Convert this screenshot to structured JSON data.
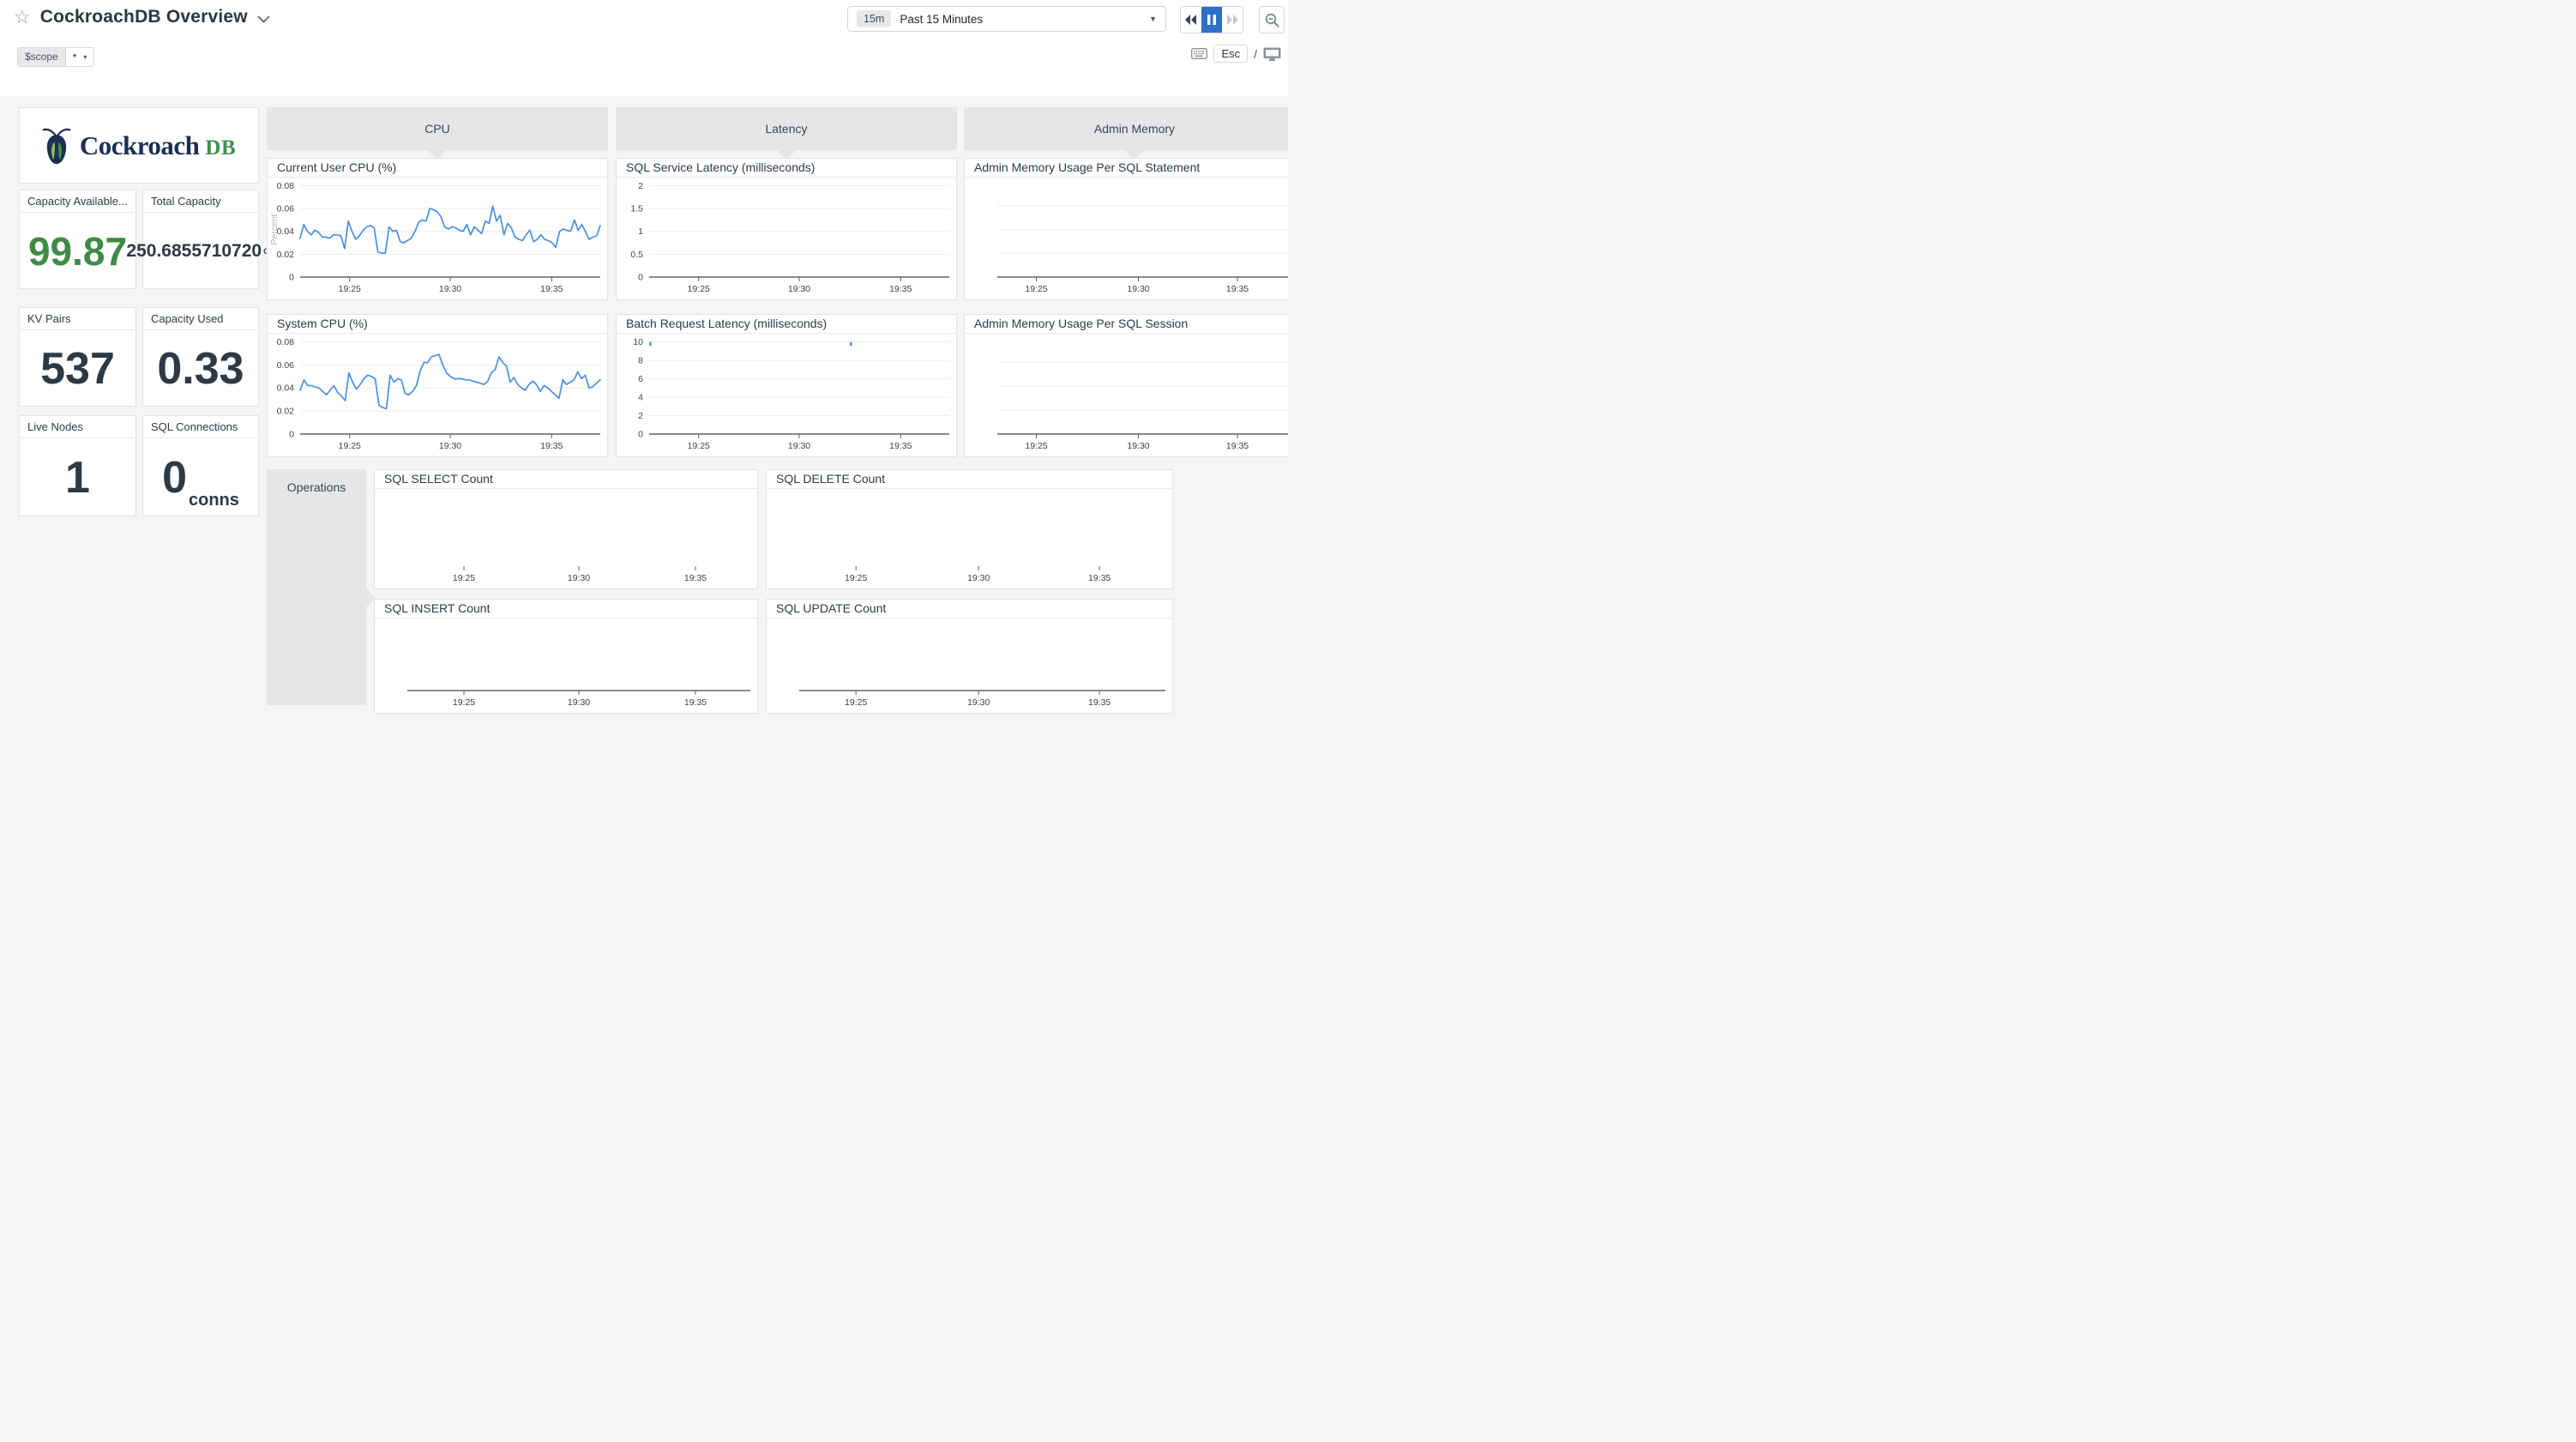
{
  "header": {
    "title": "CockroachDB Overview",
    "star_icon": "☆",
    "time_badge": "15m",
    "time_label": "Past 15 Minutes",
    "combo_caret": "▼",
    "accent_blue": "#2e6fc7"
  },
  "scope_bar": {
    "variable": "$scope",
    "value": "*",
    "caret": "▾",
    "esc_key": "Esc",
    "separator": "/"
  },
  "logo": {
    "brand": "Cockroach",
    "brand_suffix": "DB",
    "navy": "#1d3051",
    "green": "#3f8f4f"
  },
  "groups": {
    "cpu": "CPU",
    "latency": "Latency",
    "admin": "Admin Memory",
    "operations": "Operations"
  },
  "stats": [
    {
      "label": "Capacity Available...",
      "value": "99.87",
      "unit": "",
      "color": "#3f8a46"
    },
    {
      "label": "Total Capacity",
      "value": "250.6855710720",
      "unit": "GB",
      "color": "#2c3a45"
    },
    {
      "label": "KV Pairs",
      "value": "537",
      "unit": "",
      "color": "#2c3a45"
    },
    {
      "label": "Capacity Used",
      "value": "0.33",
      "unit": "",
      "color": "#2c3a45"
    },
    {
      "label": "Live Nodes",
      "value": "1",
      "unit": "",
      "color": "#2c3a45"
    },
    {
      "label": "SQL Connections",
      "value": "0",
      "unit": "conns",
      "color": "#2c3a45"
    }
  ],
  "chart_data": [
    {
      "type": "line",
      "title": "Current User CPU (%)",
      "ylabel": "Percent",
      "ymax": 0.0833,
      "axis": true,
      "line_color": "#4a90e2",
      "yticks": [
        {
          "v": 0,
          "label": "0"
        },
        {
          "v": 0.02,
          "label": "0.02"
        },
        {
          "v": 0.04,
          "label": "0.04"
        },
        {
          "v": 0.06,
          "label": "0.06"
        },
        {
          "v": 0.08,
          "label": "0.08"
        }
      ],
      "xticks": [
        {
          "f": 0.165,
          "label": "19:25"
        },
        {
          "f": 0.5,
          "label": "19:30"
        },
        {
          "f": 0.838,
          "label": "19:35"
        }
      ],
      "values": [
        0.034,
        0.046,
        0.04,
        0.037,
        0.041,
        0.039,
        0.035,
        0.035,
        0.034,
        0.037,
        0.037,
        0.036,
        0.025,
        0.049,
        0.04,
        0.033,
        0.036,
        0.041,
        0.044,
        0.045,
        0.043,
        0.022,
        0.021,
        0.021,
        0.044,
        0.04,
        0.041,
        0.031,
        0.03,
        0.032,
        0.034,
        0.04,
        0.048,
        0.05,
        0.049,
        0.06,
        0.059,
        0.057,
        0.053,
        0.044,
        0.042,
        0.044,
        0.043,
        0.041,
        0.04,
        0.046,
        0.037,
        0.044,
        0.041,
        0.038,
        0.049,
        0.047,
        0.062,
        0.049,
        0.054,
        0.037,
        0.047,
        0.043,
        0.035,
        0.033,
        0.032,
        0.037,
        0.041,
        0.031,
        0.033,
        0.037,
        0.033,
        0.032,
        0.03,
        0.026,
        0.04,
        0.042,
        0.041,
        0.04,
        0.05,
        0.041,
        0.046,
        0.04,
        0.033,
        0.035,
        0.036,
        0.045
      ]
    },
    {
      "type": "line",
      "title": "System CPU (%)",
      "ylabel": "",
      "ymax": 0.0833,
      "axis": true,
      "line_color": "#4a90e2",
      "yticks": [
        {
          "v": 0,
          "label": "0"
        },
        {
          "v": 0.02,
          "label": "0.02"
        },
        {
          "v": 0.04,
          "label": "0.04"
        },
        {
          "v": 0.06,
          "label": "0.06"
        },
        {
          "v": 0.08,
          "label": "0.08"
        }
      ],
      "xticks": [
        {
          "f": 0.165,
          "label": "19:25"
        },
        {
          "f": 0.5,
          "label": "19:30"
        },
        {
          "f": 0.838,
          "label": "19:35"
        }
      ],
      "values": [
        0.038,
        0.047,
        0.042,
        0.042,
        0.041,
        0.04,
        0.037,
        0.034,
        0.038,
        0.042,
        0.036,
        0.033,
        0.029,
        0.053,
        0.045,
        0.039,
        0.043,
        0.048,
        0.051,
        0.05,
        0.048,
        0.025,
        0.023,
        0.022,
        0.051,
        0.045,
        0.048,
        0.047,
        0.035,
        0.034,
        0.037,
        0.042,
        0.055,
        0.062,
        0.062,
        0.067,
        0.068,
        0.069,
        0.06,
        0.053,
        0.05,
        0.048,
        0.048,
        0.048,
        0.047,
        0.047,
        0.046,
        0.045,
        0.044,
        0.043,
        0.046,
        0.053,
        0.056,
        0.067,
        0.062,
        0.059,
        0.045,
        0.049,
        0.043,
        0.04,
        0.038,
        0.043,
        0.046,
        0.043,
        0.037,
        0.042,
        0.04,
        0.037,
        0.034,
        0.031,
        0.047,
        0.043,
        0.045,
        0.047,
        0.054,
        0.048,
        0.051,
        0.04,
        0.041,
        0.044,
        0.047
      ]
    },
    {
      "type": "line",
      "title": "SQL Service Latency (milliseconds)",
      "ylabel": "",
      "ymax": 2.083,
      "axis": true,
      "line_color": "#4a90e2",
      "yticks": [
        {
          "v": 0,
          "label": "0"
        },
        {
          "v": 0.5,
          "label": "0.5"
        },
        {
          "v": 1,
          "label": "1"
        },
        {
          "v": 1.5,
          "label": "1.5"
        },
        {
          "v": 2,
          "label": "2"
        }
      ],
      "xticks": [
        {
          "f": 0.165,
          "label": "19:25"
        },
        {
          "f": 0.5,
          "label": "19:30"
        },
        {
          "f": 0.838,
          "label": "19:35"
        }
      ],
      "values": []
    },
    {
      "type": "line",
      "title": "Batch Request Latency (milliseconds)",
      "ylabel": "",
      "ymax": 10.42,
      "axis": true,
      "line_color": "#4a90e2",
      "yticks": [
        {
          "v": 0,
          "label": "0"
        },
        {
          "v": 2,
          "label": "2"
        },
        {
          "v": 4,
          "label": "4"
        },
        {
          "v": 6,
          "label": "6"
        },
        {
          "v": 8,
          "label": "8"
        },
        {
          "v": 10,
          "label": "10"
        }
      ],
      "xticks": [
        {
          "f": 0.165,
          "label": "19:25"
        },
        {
          "f": 0.5,
          "label": "19:30"
        },
        {
          "f": 0.838,
          "label": "19:35"
        }
      ],
      "values": [],
      "spikes": [
        {
          "f": 0.004,
          "v1": 10.0,
          "v2": 9.55
        },
        {
          "f": 0.672,
          "v1": 10.0,
          "v2": 9.55
        }
      ]
    },
    {
      "type": "line",
      "title": "Admin Memory Usage Per SQL Statement",
      "ylabel": "",
      "ymax": 1,
      "axis": true,
      "line_color": "#4a90e2",
      "yticks": [],
      "gridfracs": [
        0.25,
        0.5,
        0.75
      ],
      "xticks": [
        {
          "f": 0.13,
          "label": "19:25"
        },
        {
          "f": 0.47,
          "label": "19:30"
        },
        {
          "f": 0.8,
          "label": "19:35"
        }
      ],
      "values": []
    },
    {
      "type": "line",
      "title": "Admin Memory Usage Per SQL Session",
      "ylabel": "",
      "ymax": 1,
      "axis": true,
      "line_color": "#4a90e2",
      "yticks": [],
      "gridfracs": [
        0.25,
        0.5,
        0.75
      ],
      "xticks": [
        {
          "f": 0.13,
          "label": "19:25"
        },
        {
          "f": 0.47,
          "label": "19:30"
        },
        {
          "f": 0.8,
          "label": "19:35"
        }
      ],
      "values": []
    },
    {
      "type": "line",
      "title": "SQL SELECT Count",
      "ylabel": "",
      "ymax": 1,
      "axis": false,
      "line_color": "#4a90e2",
      "yticks": [],
      "xticks": [
        {
          "f": 0.165,
          "label": "19:25"
        },
        {
          "f": 0.5,
          "label": "19:30"
        },
        {
          "f": 0.84,
          "label": "19:35"
        }
      ],
      "values": []
    },
    {
      "type": "line",
      "title": "SQL DELETE Count",
      "ylabel": "",
      "ymax": 1,
      "axis": false,
      "line_color": "#4a90e2",
      "yticks": [],
      "xticks": [
        {
          "f": 0.155,
          "label": "19:25"
        },
        {
          "f": 0.49,
          "label": "19:30"
        },
        {
          "f": 0.82,
          "label": "19:35"
        }
      ],
      "values": []
    },
    {
      "type": "line",
      "title": "SQL INSERT Count",
      "ylabel": "",
      "ymax": 1,
      "axis": true,
      "line_color": "#4a90e2",
      "yticks": [],
      "xticks": [
        {
          "f": 0.165,
          "label": "19:25"
        },
        {
          "f": 0.5,
          "label": "19:30"
        },
        {
          "f": 0.84,
          "label": "19:35"
        }
      ],
      "values": []
    },
    {
      "type": "line",
      "title": "SQL UPDATE Count",
      "ylabel": "",
      "ymax": 1,
      "axis": true,
      "line_color": "#4a90e2",
      "yticks": [],
      "xticks": [
        {
          "f": 0.155,
          "label": "19:25"
        },
        {
          "f": 0.49,
          "label": "19:30"
        },
        {
          "f": 0.82,
          "label": "19:35"
        }
      ],
      "values": []
    }
  ]
}
